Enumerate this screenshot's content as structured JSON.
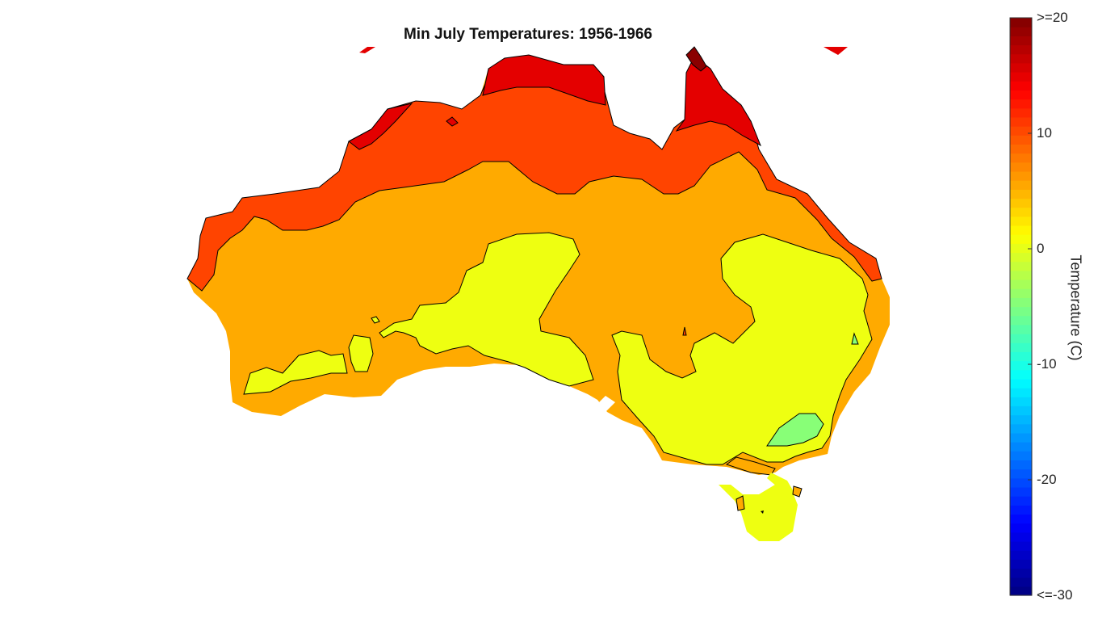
{
  "title": "Min July Temperatures: 1956-1966",
  "colorbar": {
    "label": "Temperature (C)",
    "min": -30,
    "max": 20,
    "ticks": [
      {
        "value": 20,
        "text": ">=20"
      },
      {
        "value": 10,
        "text": "10"
      },
      {
        "value": 0,
        "text": "0"
      },
      {
        "value": -10,
        "text": "-10"
      },
      {
        "value": -20,
        "text": "-20"
      },
      {
        "value": -30,
        "text": "<=-30"
      }
    ],
    "colormap": "jet"
  },
  "map": {
    "region": "Australia",
    "zones": [
      {
        "name": "above-15C",
        "color": "#e40000"
      },
      {
        "name": "10-15C",
        "color": "#ff4400"
      },
      {
        "name": "5-10C",
        "color": "#ffaa00"
      },
      {
        "name": "0-5C",
        "color": "#eeff11"
      },
      {
        "name": "below-0C",
        "color": "#88ff77"
      },
      {
        "name": "above-20C",
        "color": "#8a0000"
      }
    ]
  }
}
